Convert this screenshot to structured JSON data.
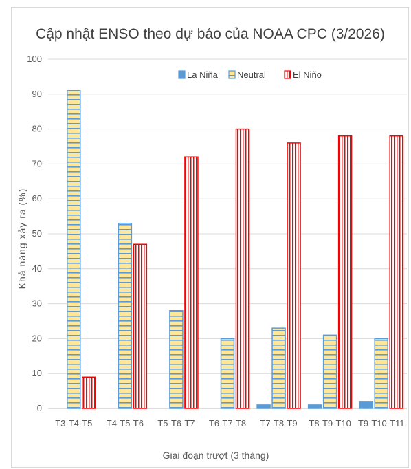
{
  "chart_data": {
    "type": "bar",
    "title": "Cập nhật ENSO theo dự báo của NOAA CPC (3/2026)",
    "xlabel": "Giai đoạn trượt (3 tháng)",
    "ylabel": "Khả năng xảy ra (%)",
    "ylim": [
      0,
      100
    ],
    "yticks": [
      "0",
      "10",
      "20",
      "30",
      "40",
      "50",
      "60",
      "70",
      "80",
      "90",
      "100"
    ],
    "categories": [
      "T3-T4-T5",
      "T4-T5-T6",
      "T5-T6-T7",
      "T6-T7-T8",
      "T7-T8-T9",
      "T8-T9-T10",
      "T9-T10-T11"
    ],
    "series": [
      {
        "name": "La Niña",
        "values": [
          0,
          0,
          0,
          0,
          1,
          1,
          2
        ],
        "color": "#5b9bd5"
      },
      {
        "name": "Neutral",
        "values": [
          91,
          53,
          28,
          20,
          23,
          21,
          20
        ],
        "color": "#ffe699"
      },
      {
        "name": "El Niño",
        "values": [
          9,
          47,
          72,
          80,
          76,
          78,
          78
        ],
        "color": "#ff0000"
      }
    ],
    "legend": "top",
    "grid": true
  }
}
